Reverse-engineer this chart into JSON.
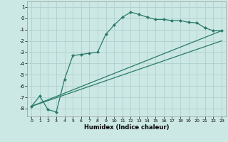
{
  "xlabel": "Humidex (Indice chaleur)",
  "xlim": [
    -0.5,
    23.5
  ],
  "ylim": [
    -8.7,
    1.5
  ],
  "yticks": [
    1,
    0,
    -1,
    -2,
    -3,
    -4,
    -5,
    -6,
    -7,
    -8
  ],
  "xticks": [
    0,
    1,
    2,
    3,
    4,
    5,
    6,
    7,
    8,
    9,
    10,
    11,
    12,
    13,
    14,
    15,
    16,
    17,
    18,
    19,
    20,
    21,
    22,
    23
  ],
  "bg_color": "#cce8e4",
  "grid_color": "#aacccc",
  "line_color": "#2a7a6a",
  "curve_x": [
    0,
    1,
    2,
    3,
    4,
    5,
    6,
    7,
    8,
    9,
    10,
    11,
    12,
    13,
    14,
    15,
    16,
    17,
    18,
    19,
    20,
    21,
    22,
    23
  ],
  "curve_y": [
    -7.8,
    -6.9,
    -8.1,
    -8.3,
    -5.4,
    -3.3,
    -3.2,
    -3.1,
    -3.0,
    -1.4,
    -0.6,
    0.1,
    0.55,
    0.35,
    0.1,
    -0.1,
    -0.1,
    -0.2,
    -0.2,
    -0.35,
    -0.4,
    -0.85,
    -1.1,
    -1.1
  ],
  "line2_x": [
    0,
    23
  ],
  "line2_y": [
    -7.8,
    -1.1
  ],
  "line3_x": [
    0,
    23
  ],
  "line3_y": [
    -7.8,
    -2.0
  ]
}
